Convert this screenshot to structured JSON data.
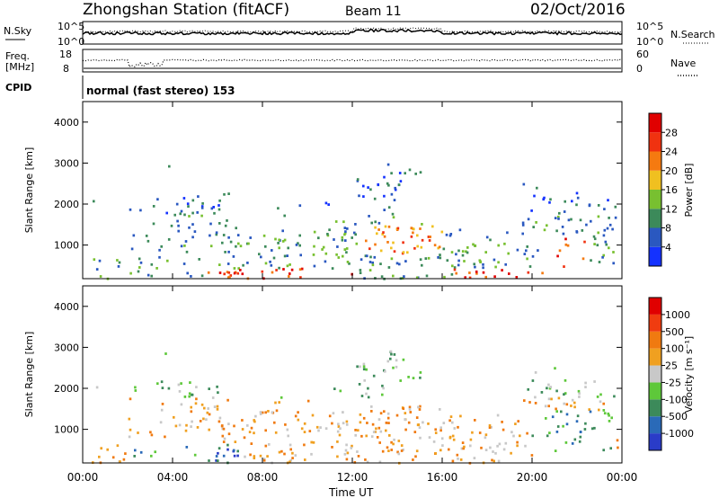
{
  "header": {
    "station": "Zhongshan Station (fitACF)",
    "beam": "Beam 11",
    "date": "02/Oct/2016"
  },
  "top_panels": {
    "nsky_label": "N.Sky",
    "nsky_ticks": [
      "10^5",
      "10^0"
    ],
    "nsearch_label": "N.Search",
    "nsearch_ticks": [
      "10^5",
      "10^0"
    ],
    "freq_label_1": "Freq.",
    "freq_label_2": "[MHz]",
    "freq_ticks": [
      "18",
      "8"
    ],
    "nave_label": "Nave",
    "nave_ticks": [
      "60",
      "0"
    ],
    "cpid_label": "CPID",
    "cpid_text": "normal (fast stereo) 153"
  },
  "chart_data": [
    {
      "type": "heatmap",
      "title": "",
      "xlabel": "Time UT",
      "ylabel": "Slant Range [km]",
      "x_tick_labels": [
        "00:00",
        "04:00",
        "08:00",
        "12:00",
        "16:00",
        "20:00",
        "00:00"
      ],
      "y_tick_labels": [
        "1000",
        "2000",
        "3000",
        "4000"
      ],
      "ylim": [
        180,
        4500
      ],
      "colorbar_label": "Power [dB]",
      "colorbar_ticks": [
        "4",
        "8",
        "12",
        "16",
        "20",
        "24",
        "28"
      ],
      "colors": [
        "#1432ff",
        "#2a58c0",
        "#3c8a5a",
        "#78c030",
        "#f0c020",
        "#f57a10",
        "#f03210",
        "#e00000"
      ]
    },
    {
      "type": "heatmap",
      "title": "",
      "xlabel": "Time UT",
      "ylabel": "Slant Range [km]",
      "x_tick_labels": [
        "00:00",
        "04:00",
        "08:00",
        "12:00",
        "16:00",
        "20:00",
        "00:00"
      ],
      "y_tick_labels": [
        "1000",
        "2000",
        "3000",
        "4000"
      ],
      "ylim": [
        180,
        4500
      ],
      "colorbar_label": "Velocity [m s⁻¹]",
      "colorbar_ticks": [
        "1000",
        "500",
        "100",
        "25",
        "-25",
        "-100",
        "-500",
        "-1000"
      ],
      "colors": [
        "#2a3cc8",
        "#2a6ab8",
        "#3c8a5a",
        "#5ec83a",
        "#c8c8c8",
        "#f0a020",
        "#f07a10",
        "#f03c10",
        "#e00000"
      ]
    }
  ]
}
